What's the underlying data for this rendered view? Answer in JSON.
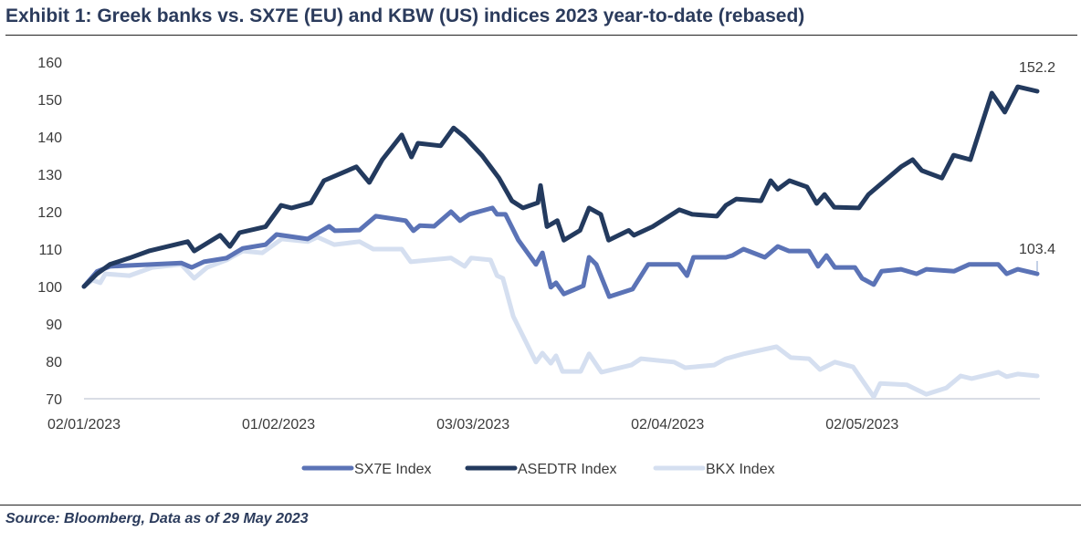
{
  "title": "Exhibit 1: Greek banks vs. SX7E (EU) and KBW (US) indices 2023 year-to-date (rebased)",
  "source": "Source: Bloomberg, Data as of 29 May 2023",
  "chart_data": {
    "type": "line",
    "title": "Exhibit 1: Greek banks vs. SX7E (EU) and KBW (US) indices 2023 year-to-date (rebased)",
    "xlabel": "",
    "ylabel": "",
    "x_units": "days since 02/01/2023",
    "xlim": [
      0,
      147
    ],
    "ylim": [
      70,
      160
    ],
    "yticks": [
      70,
      80,
      90,
      100,
      110,
      120,
      130,
      140,
      150,
      160
    ],
    "xticks": [
      {
        "x": 0,
        "label": "02/01/2023"
      },
      {
        "x": 30,
        "label": "01/02/2023"
      },
      {
        "x": 60,
        "label": "03/03/2023"
      },
      {
        "x": 90,
        "label": "02/04/2023"
      },
      {
        "x": 120,
        "label": "02/05/2023"
      }
    ],
    "grid": false,
    "legend_position": "bottom",
    "series": [
      {
        "name": "SX7E Index",
        "color": "#5b73b6",
        "x": [
          0,
          2,
          4,
          15,
          16.6,
          18.5,
          22,
          24.5,
          28,
          29.7,
          34.5,
          37.8,
          38.7,
          42.5,
          45,
          49.6,
          50.8,
          51.8,
          54,
          56.6,
          58,
          59.4,
          63,
          63.7,
          65,
          67,
          69.7,
          70.7,
          72,
          72.8,
          74,
          77,
          77.9,
          79,
          81,
          84.6,
          87,
          91.7,
          93,
          94,
          99,
          100,
          101.7,
          105,
          107,
          108.7,
          111.8,
          113.2,
          114.5,
          115.8,
          118.9,
          120,
          121.8,
          123,
          126,
          128.4,
          129.9,
          134.2,
          136.5,
          141,
          142.3,
          144,
          147
        ],
        "y": [
          100,
          104,
          105.4,
          106.3,
          105.1,
          106.6,
          107.6,
          110.2,
          111.2,
          113.9,
          112.7,
          116.1,
          114.9,
          115.1,
          118.8,
          117.6,
          114.9,
          116.3,
          116.1,
          120,
          117.6,
          119.3,
          121,
          119.3,
          119.3,
          112.4,
          105.9,
          109,
          99.8,
          101,
          98,
          100.2,
          107.8,
          105.9,
          97.3,
          99.3,
          105.9,
          105.9,
          102.9,
          107.8,
          107.8,
          108.3,
          110,
          107.8,
          110.7,
          109.5,
          109.5,
          105.4,
          108.3,
          105.1,
          105.1,
          102.2,
          100.5,
          104.1,
          104.6,
          103.4,
          104.6,
          104.1,
          105.9,
          105.9,
          103.4,
          104.6,
          103.4
        ]
      },
      {
        "name": "ASEDTR Index",
        "color": "#233a5e",
        "x": [
          0,
          2,
          4,
          7,
          10,
          16,
          17,
          21,
          22.5,
          24,
          28,
          30.4,
          32,
          35,
          37,
          42,
          44,
          46,
          49,
          50.5,
          51.5,
          55,
          57,
          58.7,
          61.4,
          64,
          66,
          67.7,
          70,
          70.4,
          71.4,
          73,
          74,
          76.5,
          77.9,
          79.7,
          80.9,
          84,
          84.8,
          87.7,
          91.8,
          93.8,
          97.6,
          99,
          100.6,
          104.4,
          105.9,
          107,
          108.8,
          111.5,
          113,
          114.2,
          115.7,
          119.5,
          121,
          126,
          127.8,
          129.2,
          132.3,
          134.1,
          136.7,
          140,
          142,
          144,
          147
        ],
        "y": [
          100,
          103.4,
          105.9,
          107.6,
          109.5,
          112,
          109.5,
          113.7,
          110.7,
          114.4,
          116,
          121.7,
          121,
          122.4,
          128.3,
          132,
          127.8,
          133.9,
          140.5,
          134.6,
          138.3,
          137.6,
          142.4,
          140,
          135,
          129,
          122.9,
          121,
          122.4,
          127,
          116,
          117.6,
          112.4,
          115,
          121,
          119.3,
          112.4,
          115,
          113.7,
          116,
          120.5,
          119.3,
          118.8,
          121.7,
          123.4,
          122.9,
          128.3,
          126,
          128.3,
          126.6,
          122.2,
          124.6,
          121.2,
          121,
          124.6,
          132,
          133.9,
          131,
          129,
          135.1,
          133.9,
          151.7,
          146.6,
          153.4,
          152.2
        ]
      },
      {
        "name": "BKX Index",
        "color": "#d5dff0",
        "x": [
          0,
          1.3,
          2.5,
          3.3,
          7,
          10.5,
          15,
          17,
          19,
          22,
          24.5,
          27.5,
          30.5,
          34.5,
          36,
          38.6,
          42.5,
          44.6,
          49,
          50.4,
          56.6,
          58.7,
          59.7,
          62.7,
          63.7,
          64.6,
          66.2,
          69.7,
          70.7,
          72,
          72.8,
          73.8,
          76.6,
          77.9,
          79.8,
          84.4,
          85.9,
          91,
          92.7,
          97.2,
          99,
          101.7,
          106.8,
          109,
          111.8,
          113.5,
          115.8,
          118.6,
          121.8,
          122.8,
          126.9,
          129.9,
          133,
          135.2,
          136.9,
          141,
          142.3,
          144,
          147
        ],
        "y": [
          100,
          101.7,
          101,
          103.4,
          102.9,
          105.1,
          105.9,
          102.2,
          105.1,
          107.1,
          109.5,
          109,
          112.7,
          112,
          113.2,
          111.2,
          112,
          110,
          110,
          106.6,
          107.6,
          105.4,
          107.6,
          107.1,
          102.9,
          102.2,
          92,
          79.8,
          82.2,
          79.5,
          81.5,
          77.3,
          77.3,
          82,
          77.1,
          79,
          80.7,
          79.8,
          78.3,
          79,
          80.7,
          82,
          83.9,
          81,
          80.7,
          77.8,
          79.8,
          78.5,
          70.5,
          74.1,
          73.7,
          71.2,
          72.9,
          76.1,
          75.4,
          77.1,
          75.9,
          76.6,
          76.1
        ]
      }
    ],
    "annotations": [
      {
        "series": "ASEDTR Index",
        "text": "152.2"
      },
      {
        "series": "SX7E Index",
        "text": "103.4"
      }
    ]
  }
}
